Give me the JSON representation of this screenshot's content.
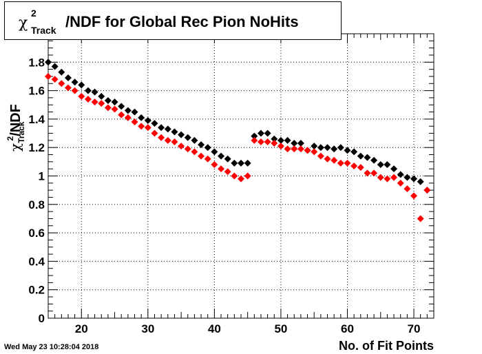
{
  "header": {
    "title_chi": "χ",
    "title_sup": "2",
    "title_sub": "Track",
    "title_rest": "/NDF for Global Rec Pion NoHits"
  },
  "footer": {
    "date_stamp": "Wed May 23 10:28:04 2018"
  },
  "axes": {
    "x_label": "No. of Fit Points",
    "y_label_chi": "χ",
    "y_label_sup": "2",
    "y_label_sub": "Track",
    "y_label_rest": "/NDF"
  },
  "chart_data": {
    "type": "scatter",
    "xlim": [
      15,
      73
    ],
    "ylim": [
      0,
      2
    ],
    "x_ticks": [
      20,
      30,
      40,
      50,
      60,
      70
    ],
    "y_ticks": [
      0,
      0.2,
      0.4,
      0.6,
      0.8,
      1,
      1.2,
      1.4,
      1.6,
      1.8
    ],
    "grid": true,
    "series": [
      {
        "color": "#000000",
        "points": [
          [
            15,
            1.8
          ],
          [
            16,
            1.77
          ],
          [
            17,
            1.73
          ],
          [
            18,
            1.69
          ],
          [
            19,
            1.66
          ],
          [
            20,
            1.64
          ],
          [
            21,
            1.6
          ],
          [
            22,
            1.59
          ],
          [
            23,
            1.56
          ],
          [
            24,
            1.53
          ],
          [
            25,
            1.52
          ],
          [
            26,
            1.49
          ],
          [
            27,
            1.46
          ],
          [
            28,
            1.45
          ],
          [
            29,
            1.41
          ],
          [
            30,
            1.39
          ],
          [
            31,
            1.37
          ],
          [
            32,
            1.34
          ],
          [
            33,
            1.33
          ],
          [
            34,
            1.31
          ],
          [
            35,
            1.29
          ],
          [
            36,
            1.27
          ],
          [
            37,
            1.25
          ],
          [
            38,
            1.22
          ],
          [
            39,
            1.2
          ],
          [
            40,
            1.17
          ],
          [
            41,
            1.14
          ],
          [
            42,
            1.12
          ],
          [
            43,
            1.09
          ],
          [
            44,
            1.09
          ],
          [
            45,
            1.09
          ],
          [
            46,
            1.28
          ],
          [
            47,
            1.3
          ],
          [
            48,
            1.3
          ],
          [
            49,
            1.26
          ],
          [
            50,
            1.25
          ],
          [
            51,
            1.25
          ],
          [
            52,
            1.23
          ],
          [
            53,
            1.23
          ],
          [
            54,
            1.18
          ],
          [
            55,
            1.21
          ],
          [
            56,
            1.2
          ],
          [
            57,
            1.2
          ],
          [
            58,
            1.19
          ],
          [
            59,
            1.2
          ],
          [
            60,
            1.18
          ],
          [
            61,
            1.17
          ],
          [
            62,
            1.14
          ],
          [
            63,
            1.13
          ],
          [
            64,
            1.11
          ],
          [
            65,
            1.08
          ],
          [
            66,
            1.08
          ],
          [
            67,
            1.05
          ],
          [
            68,
            1.01
          ],
          [
            69,
            0.99
          ],
          [
            70,
            0.98
          ],
          [
            71,
            0.96
          ],
          [
            72,
            0.9
          ]
        ]
      },
      {
        "color": "#ff0000",
        "points": [
          [
            15,
            1.7
          ],
          [
            16,
            1.68
          ],
          [
            17,
            1.65
          ],
          [
            18,
            1.62
          ],
          [
            19,
            1.6
          ],
          [
            20,
            1.56
          ],
          [
            21,
            1.54
          ],
          [
            22,
            1.52
          ],
          [
            23,
            1.51
          ],
          [
            24,
            1.48
          ],
          [
            25,
            1.47
          ],
          [
            26,
            1.43
          ],
          [
            27,
            1.41
          ],
          [
            28,
            1.38
          ],
          [
            29,
            1.35
          ],
          [
            30,
            1.34
          ],
          [
            31,
            1.3
          ],
          [
            32,
            1.27
          ],
          [
            33,
            1.25
          ],
          [
            34,
            1.24
          ],
          [
            35,
            1.21
          ],
          [
            36,
            1.19
          ],
          [
            37,
            1.17
          ],
          [
            38,
            1.14
          ],
          [
            39,
            1.12
          ],
          [
            40,
            1.08
          ],
          [
            41,
            1.05
          ],
          [
            42,
            1.03
          ],
          [
            43,
            1.0
          ],
          [
            44,
            0.98
          ],
          [
            45,
            1.0
          ],
          [
            46,
            1.25
          ],
          [
            47,
            1.24
          ],
          [
            48,
            1.24
          ],
          [
            49,
            1.23
          ],
          [
            50,
            1.21
          ],
          [
            51,
            1.19
          ],
          [
            52,
            1.19
          ],
          [
            53,
            1.19
          ],
          [
            54,
            1.18
          ],
          [
            55,
            1.17
          ],
          [
            56,
            1.14
          ],
          [
            57,
            1.12
          ],
          [
            58,
            1.11
          ],
          [
            59,
            1.09
          ],
          [
            60,
            1.09
          ],
          [
            61,
            1.07
          ],
          [
            62,
            1.06
          ],
          [
            63,
            1.02
          ],
          [
            64,
            1.02
          ],
          [
            65,
            0.99
          ],
          [
            66,
            0.98
          ],
          [
            67,
            0.99
          ],
          [
            68,
            0.95
          ],
          [
            69,
            0.91
          ],
          [
            70,
            0.86
          ],
          [
            71,
            0.7
          ],
          [
            72,
            0.9
          ]
        ]
      }
    ]
  }
}
